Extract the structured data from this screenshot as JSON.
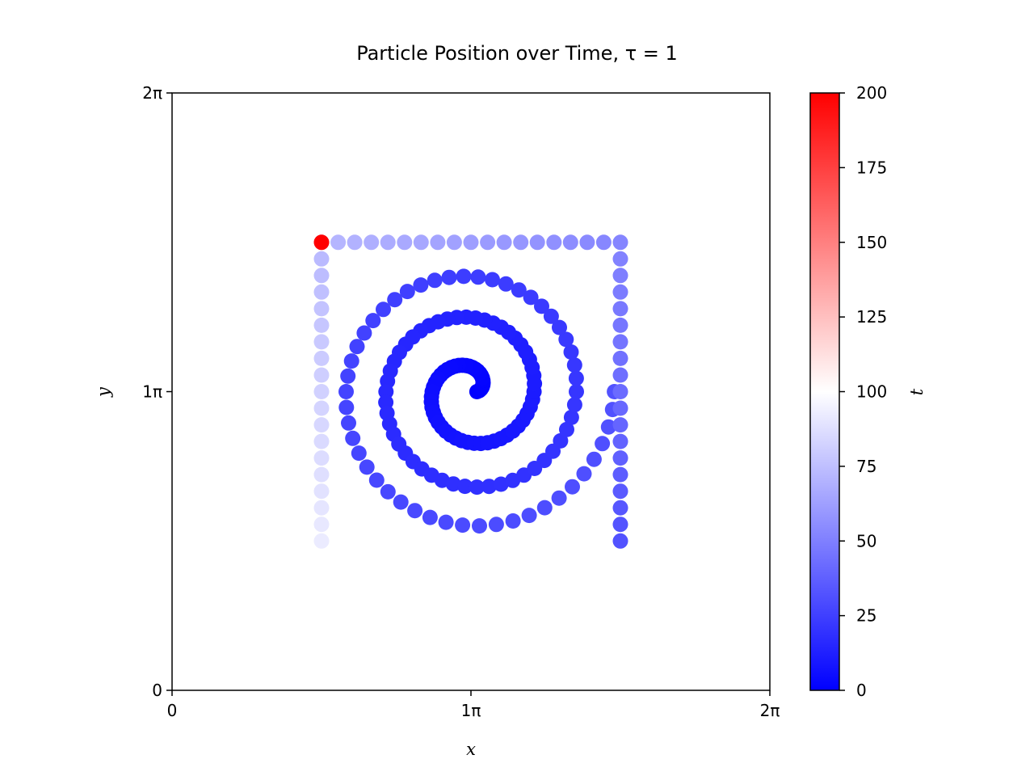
{
  "chart_data": {
    "type": "scatter",
    "title": "Particle Position over Time, τ = 1",
    "xlabel": "x",
    "ylabel": "y",
    "xlim": [
      0,
      2
    ],
    "ylim": [
      0,
      2
    ],
    "x_unit": "π",
    "y_unit": "π",
    "x_ticks": [
      0,
      1,
      2
    ],
    "y_ticks": [
      0,
      1,
      2
    ],
    "x_tick_labels": [
      "0",
      "1π",
      "2π"
    ],
    "y_tick_labels": [
      "0",
      "1π",
      "2π"
    ],
    "grid": false,
    "colorbar": {
      "label": "t",
      "range": [
        0,
        200
      ],
      "ticks": [
        0,
        25,
        50,
        75,
        100,
        125,
        150,
        175,
        200
      ],
      "tick_labels": [
        "0",
        "25",
        "50",
        "75",
        "100",
        "125",
        "150",
        "175",
        "200"
      ],
      "colormap": "bwr",
      "colors": [
        "#0000ff",
        "#ffffff",
        "#ff0000"
      ]
    },
    "trajectory": {
      "description_of_series": "spiral outward from center then square orbit",
      "center": [
        1.0,
        1.0
      ],
      "spiral": {
        "t_range": [
          0,
          32
        ],
        "turns": 3,
        "radius_range": [
          0.02,
          0.48
        ]
      },
      "square": {
        "corners": [
          [
            1.5,
            0.5
          ],
          [
            1.5,
            1.5
          ],
          [
            0.5,
            1.5
          ],
          [
            0.5,
            0.5
          ]
        ],
        "t_range": [
          32,
          92
        ]
      },
      "final_point": {
        "x": 0.5,
        "y": 1.5,
        "t": 200
      }
    }
  }
}
